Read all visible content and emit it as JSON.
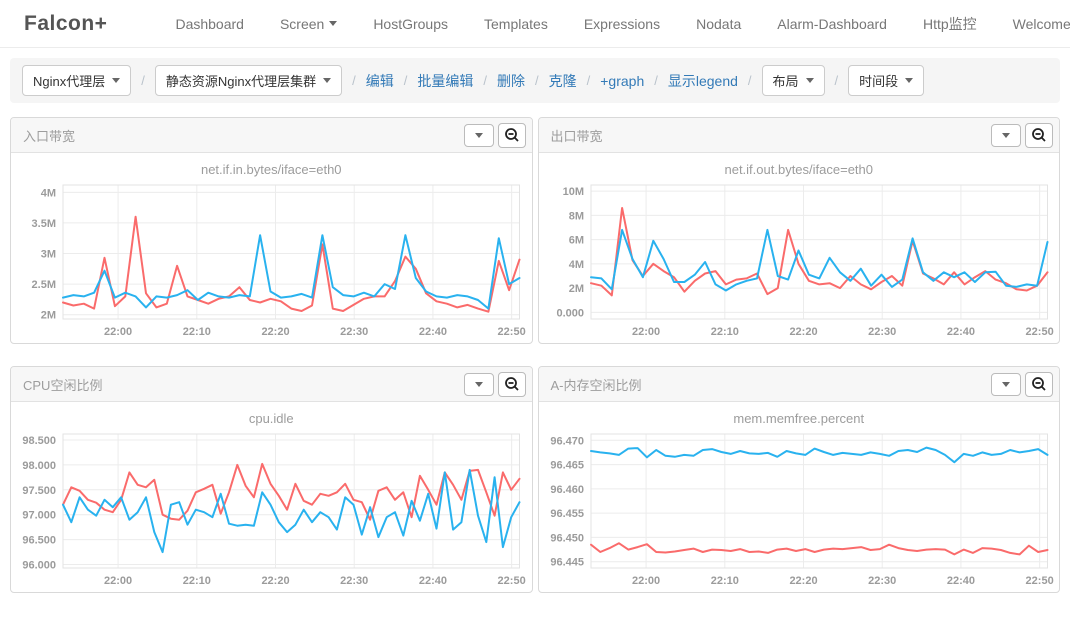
{
  "navbar": {
    "brand": "Falcon+",
    "items": [
      {
        "label": "Dashboard"
      },
      {
        "label": "Screen",
        "caret": true
      },
      {
        "label": "HostGroups"
      },
      {
        "label": "Templates"
      },
      {
        "label": "Expressions"
      },
      {
        "label": "Nodata"
      },
      {
        "label": "Alarm-Dashboard"
      },
      {
        "label": "Http监控"
      },
      {
        "label": "Welcome luojunwu",
        "caret": true
      }
    ]
  },
  "toolbar": {
    "separator": "/",
    "screen_select": "Nginx代理层",
    "group_select": "静态资源Nginx代理层集群",
    "links": {
      "edit": "编辑",
      "batch_edit": "批量编辑",
      "delete": "删除",
      "clone": "克隆",
      "add_graph": "+graph",
      "show_legend": "显示legend"
    },
    "layout_button": "布局",
    "timerange_button": "时间段"
  },
  "colors": {
    "red_series": "#fa6b6b",
    "blue_series": "#29b2ef",
    "grid": "#ececec",
    "plot_border": "#e3e3e3",
    "link_blue": "#337ab7"
  },
  "panels": [
    {
      "header": "入口带宽",
      "chart_data": {
        "type": "line",
        "title": "net.if.in.bytes/iface=eth0",
        "x_start": "21:53",
        "x_end": "22:51",
        "x_ticks": [
          "22:00",
          "22:10",
          "22:20",
          "22:30",
          "22:40",
          "22:50"
        ],
        "y_ticks": [
          2,
          2.5,
          3,
          3.5,
          4
        ],
        "y_tick_labels": [
          "2M",
          "2.5M",
          "3M",
          "3.5M",
          "4M"
        ],
        "ylim": [
          1.93,
          4.12
        ],
        "series": [
          {
            "color": "#fa6b6b",
            "values": [
              2.2,
              2.15,
              2.18,
              2.1,
              2.93,
              2.14,
              2.3,
              3.6,
              2.35,
              2.12,
              2.18,
              2.8,
              2.3,
              2.24,
              2.18,
              2.26,
              2.3,
              2.45,
              2.24,
              2.2,
              2.26,
              2.22,
              2.1,
              2.06,
              2.15,
              3.15,
              2.1,
              2.06,
              2.16,
              2.26,
              2.3,
              2.3,
              2.55,
              2.95,
              2.75,
              2.35,
              2.22,
              2.18,
              2.12,
              2.16,
              2.1,
              2.05,
              2.88,
              2.4,
              2.9
            ]
          },
          {
            "color": "#29b2ef",
            "values": [
              2.28,
              2.32,
              2.3,
              2.36,
              2.72,
              2.28,
              2.36,
              2.3,
              2.12,
              2.3,
              2.28,
              2.32,
              2.4,
              2.24,
              2.36,
              2.3,
              2.28,
              2.32,
              2.3,
              3.3,
              2.38,
              2.28,
              2.3,
              2.34,
              2.28,
              3.3,
              2.45,
              2.32,
              2.3,
              2.36,
              2.3,
              2.5,
              2.42,
              3.3,
              2.6,
              2.38,
              2.3,
              2.28,
              2.32,
              2.3,
              2.24,
              2.1,
              3.25,
              2.5,
              2.6
            ]
          }
        ]
      }
    },
    {
      "header": "出口带宽",
      "chart_data": {
        "type": "line",
        "title": "net.if.out.bytes/iface=eth0",
        "x_start": "21:53",
        "x_end": "22:51",
        "x_ticks": [
          "22:00",
          "22:10",
          "22:20",
          "22:30",
          "22:40",
          "22:50"
        ],
        "y_ticks": [
          0,
          2,
          4,
          6,
          8,
          10
        ],
        "y_tick_labels": [
          "0.000",
          "2M",
          "4M",
          "6M",
          "8M",
          "10M"
        ],
        "ylim": [
          -0.55,
          10.5
        ],
        "series": [
          {
            "color": "#fa6b6b",
            "values": [
              2.4,
              2.2,
              1.4,
              8.6,
              4.3,
              3.0,
              4.0,
              3.4,
              2.9,
              1.7,
              2.6,
              3.2,
              3.4,
              2.3,
              2.7,
              2.8,
              3.2,
              1.5,
              2.0,
              6.8,
              4.0,
              2.6,
              2.3,
              2.4,
              2.0,
              3.0,
              2.3,
              1.9,
              2.5,
              3.0,
              2.2,
              5.9,
              3.2,
              2.8,
              2.3,
              3.3,
              2.3,
              2.9,
              3.4,
              2.7,
              2.4,
              1.9,
              1.8,
              2.2,
              3.3
            ]
          },
          {
            "color": "#29b2ef",
            "values": [
              2.9,
              2.8,
              1.9,
              6.8,
              4.4,
              2.9,
              5.9,
              4.4,
              2.5,
              2.5,
              3.1,
              4.15,
              2.3,
              1.8,
              2.3,
              2.6,
              2.8,
              6.8,
              3.0,
              2.7,
              5.1,
              3.1,
              2.8,
              4.5,
              3.3,
              2.6,
              3.6,
              2.2,
              3.1,
              2.1,
              2.7,
              6.1,
              3.3,
              2.6,
              3.3,
              2.9,
              3.3,
              2.5,
              3.3,
              3.35,
              2.2,
              2.1,
              2.3,
              2.2,
              5.8
            ]
          }
        ]
      }
    },
    {
      "header": "CPU空闲比例",
      "chart_data": {
        "type": "line",
        "title": "cpu.idle",
        "x_start": "21:53",
        "x_end": "22:51",
        "x_ticks": [
          "22:00",
          "22:10",
          "22:20",
          "22:30",
          "22:40",
          "22:50"
        ],
        "y_ticks": [
          96.0,
          96.5,
          97.0,
          97.5,
          98.0,
          98.5
        ],
        "y_tick_labels": [
          "96.000",
          "96.500",
          "97.000",
          "97.500",
          "98.000",
          "98.500"
        ],
        "ylim": [
          95.93,
          98.62
        ],
        "series": [
          {
            "color": "#fa6b6b",
            "values": [
              97.2,
              97.55,
              97.48,
              97.3,
              97.24,
              97.1,
              97.05,
              97.3,
              97.85,
              97.6,
              97.55,
              97.7,
              97.0,
              96.92,
              96.9,
              97.08,
              97.45,
              97.52,
              97.6,
              97.02,
              97.45,
              98.0,
              97.58,
              97.35,
              98.02,
              97.62,
              97.38,
              97.1,
              97.62,
              97.28,
              97.2,
              97.42,
              97.38,
              97.45,
              97.62,
              97.3,
              97.25,
              96.9,
              97.48,
              97.55,
              97.3,
              97.45,
              96.95,
              97.78,
              97.5,
              97.2,
              97.85,
              97.6,
              97.3,
              97.88,
              97.9,
              97.45,
              96.98,
              97.85,
              97.5,
              97.72
            ]
          },
          {
            "color": "#29b2ef",
            "values": [
              97.2,
              96.85,
              97.35,
              97.1,
              96.98,
              97.3,
              97.15,
              97.35,
              96.9,
              97.05,
              97.35,
              96.65,
              96.25,
              97.2,
              97.25,
              96.8,
              97.1,
              97.05,
              96.95,
              97.42,
              96.82,
              96.78,
              96.8,
              96.78,
              97.45,
              97.2,
              96.85,
              96.65,
              96.8,
              97.1,
              96.85,
              97.05,
              96.95,
              96.7,
              97.35,
              97.2,
              96.6,
              97.15,
              96.55,
              96.95,
              97.05,
              96.58,
              97.28,
              96.88,
              97.42,
              96.72,
              97.85,
              96.7,
              96.85,
              97.9,
              96.98,
              96.45,
              97.75,
              96.35,
              96.95,
              97.25
            ]
          }
        ]
      }
    },
    {
      "header": "A-内存空闲比例",
      "chart_data": {
        "type": "line",
        "title": "mem.memfree.percent",
        "x_start": "21:53",
        "x_end": "22:51",
        "x_ticks": [
          "22:00",
          "22:10",
          "22:20",
          "22:30",
          "22:40",
          "22:50"
        ],
        "y_ticks": [
          96.445,
          96.45,
          96.455,
          96.46,
          96.465,
          96.47
        ],
        "y_tick_labels": [
          "96.445",
          "96.450",
          "96.455",
          "96.460",
          "96.465",
          "96.470"
        ],
        "ylim": [
          96.4437,
          96.4713
        ],
        "series": [
          {
            "color": "#fa6b6b",
            "values": [
              96.4485,
              96.447,
              96.4478,
              96.4488,
              96.4475,
              96.448,
              96.4486,
              96.447,
              96.4469,
              96.4471,
              96.4474,
              96.4477,
              96.447,
              96.4475,
              96.4474,
              96.4472,
              96.4476,
              96.447,
              96.4471,
              96.4468,
              96.4475,
              96.4477,
              96.4472,
              96.4476,
              96.447,
              96.4475,
              96.4477,
              96.4476,
              96.4478,
              96.448,
              96.4474,
              96.4476,
              96.4485,
              96.4478,
              96.4474,
              96.4472,
              96.4475,
              96.4476,
              96.4475,
              96.4465,
              96.4475,
              96.4468,
              96.4478,
              96.4477,
              96.4474,
              96.4468,
              96.4465,
              96.4483,
              96.447,
              96.4474
            ]
          },
          {
            "color": "#29b2ef",
            "values": [
              96.4678,
              96.4675,
              96.4673,
              96.467,
              96.4683,
              96.4684,
              96.4665,
              96.468,
              96.4668,
              96.4666,
              96.467,
              96.4668,
              96.468,
              96.4682,
              96.4676,
              96.4672,
              96.4678,
              96.4673,
              96.4672,
              96.4674,
              96.4666,
              96.4678,
              96.4673,
              96.467,
              96.4683,
              96.4676,
              96.467,
              96.4674,
              96.4672,
              96.467,
              96.4675,
              96.4672,
              96.4668,
              96.4678,
              96.468,
              96.4676,
              96.4685,
              96.468,
              96.467,
              96.4655,
              96.4672,
              96.4668,
              96.4675,
              96.467,
              96.4672,
              96.468,
              96.4675,
              96.4678,
              96.4682,
              96.467
            ]
          }
        ]
      }
    }
  ]
}
